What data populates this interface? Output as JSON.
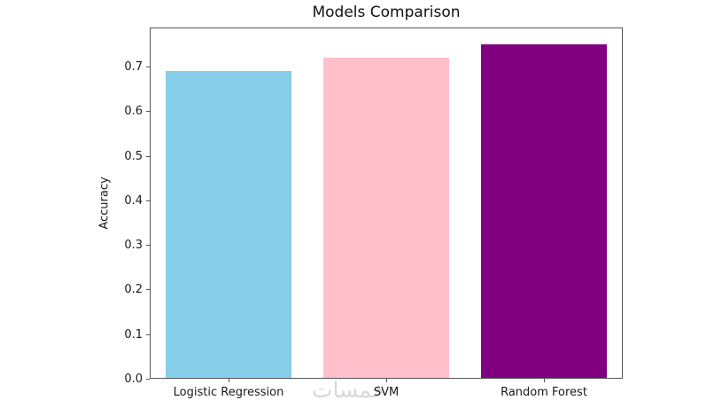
{
  "watermark": {
    "text": "خمسات",
    "star": "✦",
    "color": "#d8d8d8"
  },
  "chart_data": {
    "type": "bar",
    "title": "Models Comparison",
    "xlabel": "",
    "ylabel": "Accuracy",
    "categories": [
      "Logistic Regression",
      "SVM",
      "Random Forest"
    ],
    "values": [
      0.69,
      0.72,
      0.75
    ],
    "bar_colors": [
      "#87CEEB",
      "#FFC0CB",
      "#800080"
    ],
    "yticks": [
      0.0,
      0.1,
      0.2,
      0.3,
      0.4,
      0.5,
      0.6,
      0.7
    ],
    "ytick_labels": [
      "0.0",
      "0.1",
      "0.2",
      "0.3",
      "0.4",
      "0.5",
      "0.6",
      "0.7"
    ],
    "ylim": [
      0,
      0.7875
    ],
    "bar_width_fraction": 0.8,
    "grid": false,
    "legend": "none",
    "frame": true
  }
}
